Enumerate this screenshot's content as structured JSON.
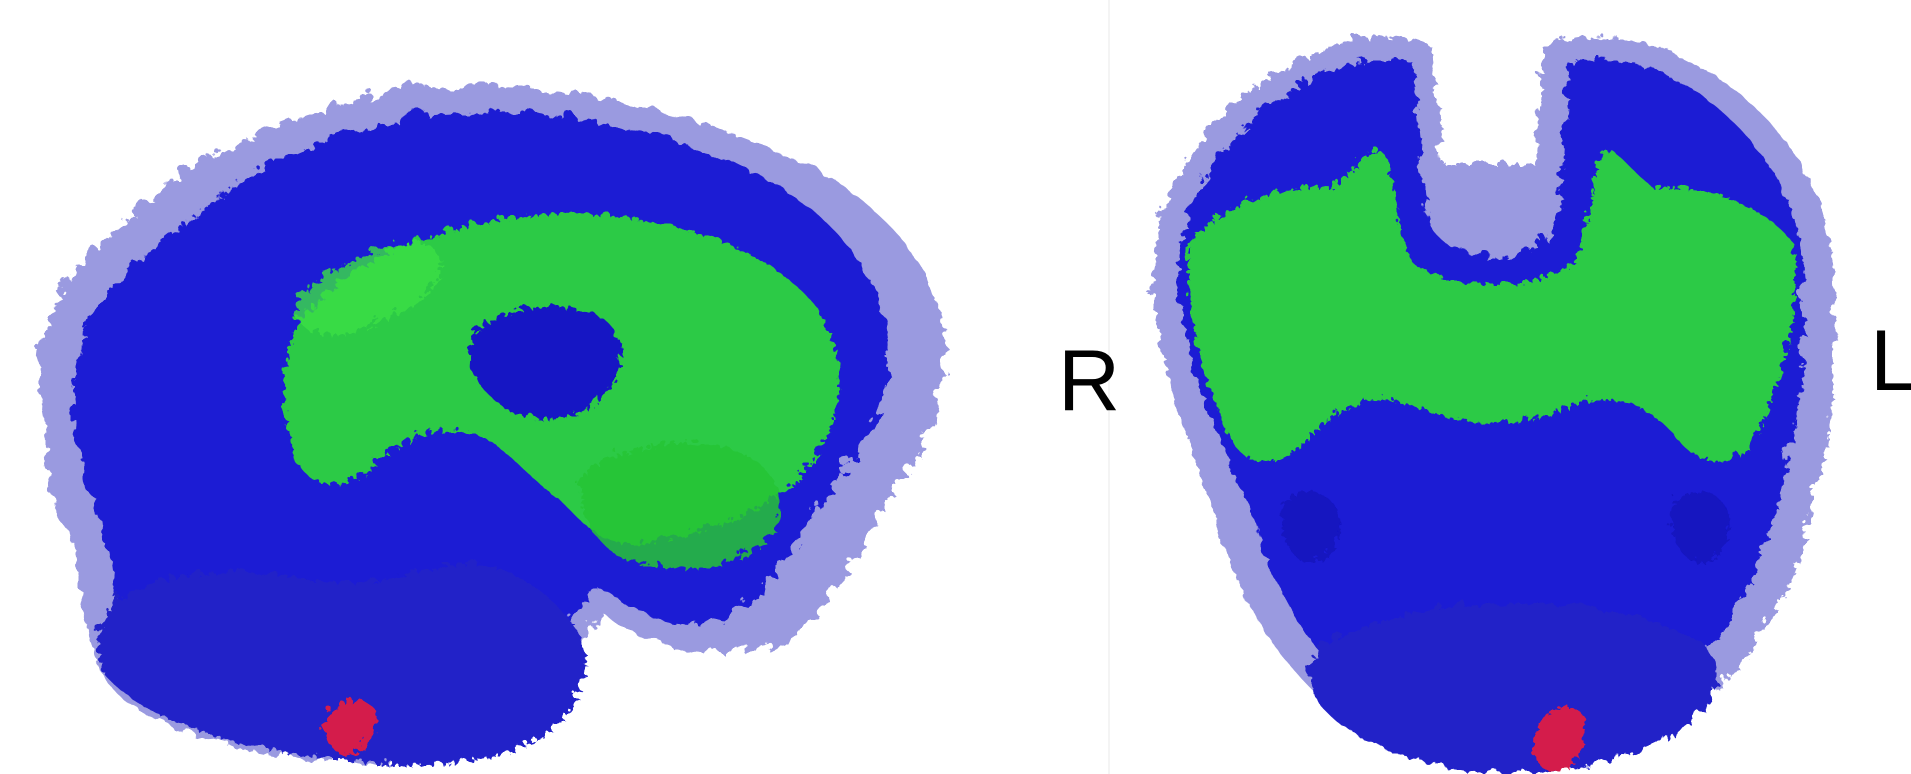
{
  "orientation_labels": {
    "right": "R",
    "left": "L"
  },
  "colors": {
    "outer_shell": "#9999dd",
    "inner_volume": "#1a1ad6",
    "tracts": "#33dd33",
    "lesion": "#d01a4a"
  },
  "panels": [
    {
      "view": "sagittal"
    },
    {
      "view": "coronal"
    }
  ]
}
